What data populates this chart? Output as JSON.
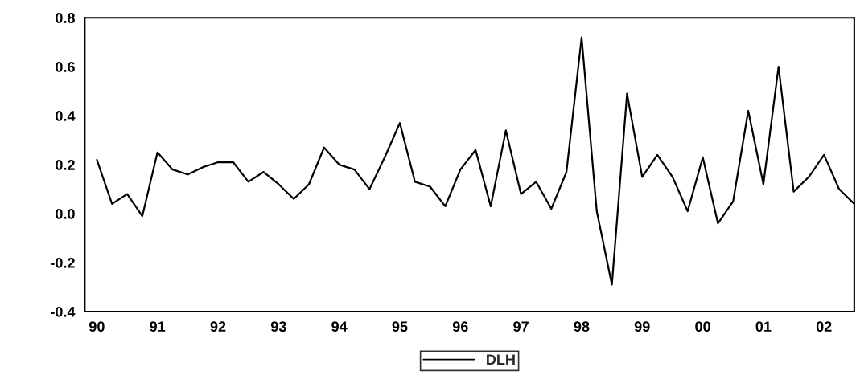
{
  "chart_data": {
    "type": "line",
    "x": [
      1990,
      1990.25,
      1990.5,
      1990.75,
      1991,
      1991.25,
      1991.5,
      1991.75,
      1992,
      1992.25,
      1992.5,
      1992.75,
      1993,
      1993.25,
      1993.5,
      1993.75,
      1994,
      1994.25,
      1994.5,
      1994.75,
      1995,
      1995.25,
      1995.5,
      1995.75,
      1996,
      1996.25,
      1996.5,
      1996.75,
      1997,
      1997.25,
      1997.5,
      1997.75,
      1998,
      1998.25,
      1998.5,
      1998.75,
      1999,
      1999.25,
      1999.5,
      1999.75,
      2000,
      2000.25,
      2000.5,
      2000.75,
      2001,
      2001.25,
      2001.5,
      2001.75,
      2002,
      2002.25,
      2002.5
    ],
    "series": [
      {
        "name": "DLH",
        "color": "#000000",
        "values": [
          0.22,
          0.04,
          0.08,
          -0.01,
          0.25,
          0.18,
          0.16,
          0.19,
          0.21,
          0.21,
          0.13,
          0.17,
          0.12,
          0.06,
          0.12,
          0.27,
          0.2,
          0.18,
          0.1,
          0.23,
          0.37,
          0.13,
          0.11,
          0.03,
          0.18,
          0.26,
          0.03,
          0.34,
          0.08,
          0.13,
          0.02,
          0.17,
          0.72,
          0.01,
          -0.29,
          0.49,
          0.15,
          0.24,
          0.15,
          0.01,
          0.23,
          -0.04,
          0.05,
          0.42,
          0.12,
          0.6,
          0.09,
          0.15,
          0.24,
          0.1,
          0.04
        ]
      }
    ],
    "xlim": [
      1989.8,
      2002.5
    ],
    "xticks": [
      {
        "value": 1990,
        "label": "90"
      },
      {
        "value": 1991,
        "label": "91"
      },
      {
        "value": 1992,
        "label": "92"
      },
      {
        "value": 1993,
        "label": "93"
      },
      {
        "value": 1994,
        "label": "94"
      },
      {
        "value": 1995,
        "label": "95"
      },
      {
        "value": 1996,
        "label": "96"
      },
      {
        "value": 1997,
        "label": "97"
      },
      {
        "value": 1998,
        "label": "98"
      },
      {
        "value": 1999,
        "label": "99"
      },
      {
        "value": 2000,
        "label": "00"
      },
      {
        "value": 2001,
        "label": "01"
      },
      {
        "value": 2002,
        "label": "02"
      }
    ],
    "ylim": [
      -0.4,
      0.8
    ],
    "yticks": [
      {
        "value": -0.4,
        "label": "-0.4"
      },
      {
        "value": -0.2,
        "label": "-0.2"
      },
      {
        "value": 0.0,
        "label": "0.0"
      },
      {
        "value": 0.2,
        "label": "0.2"
      },
      {
        "value": 0.4,
        "label": "0.4"
      },
      {
        "value": 0.6,
        "label": "0.6"
      },
      {
        "value": 0.8,
        "label": "0.8"
      }
    ],
    "grid": false,
    "legend": "bottom",
    "marker": "none",
    "line_style": "solid"
  }
}
